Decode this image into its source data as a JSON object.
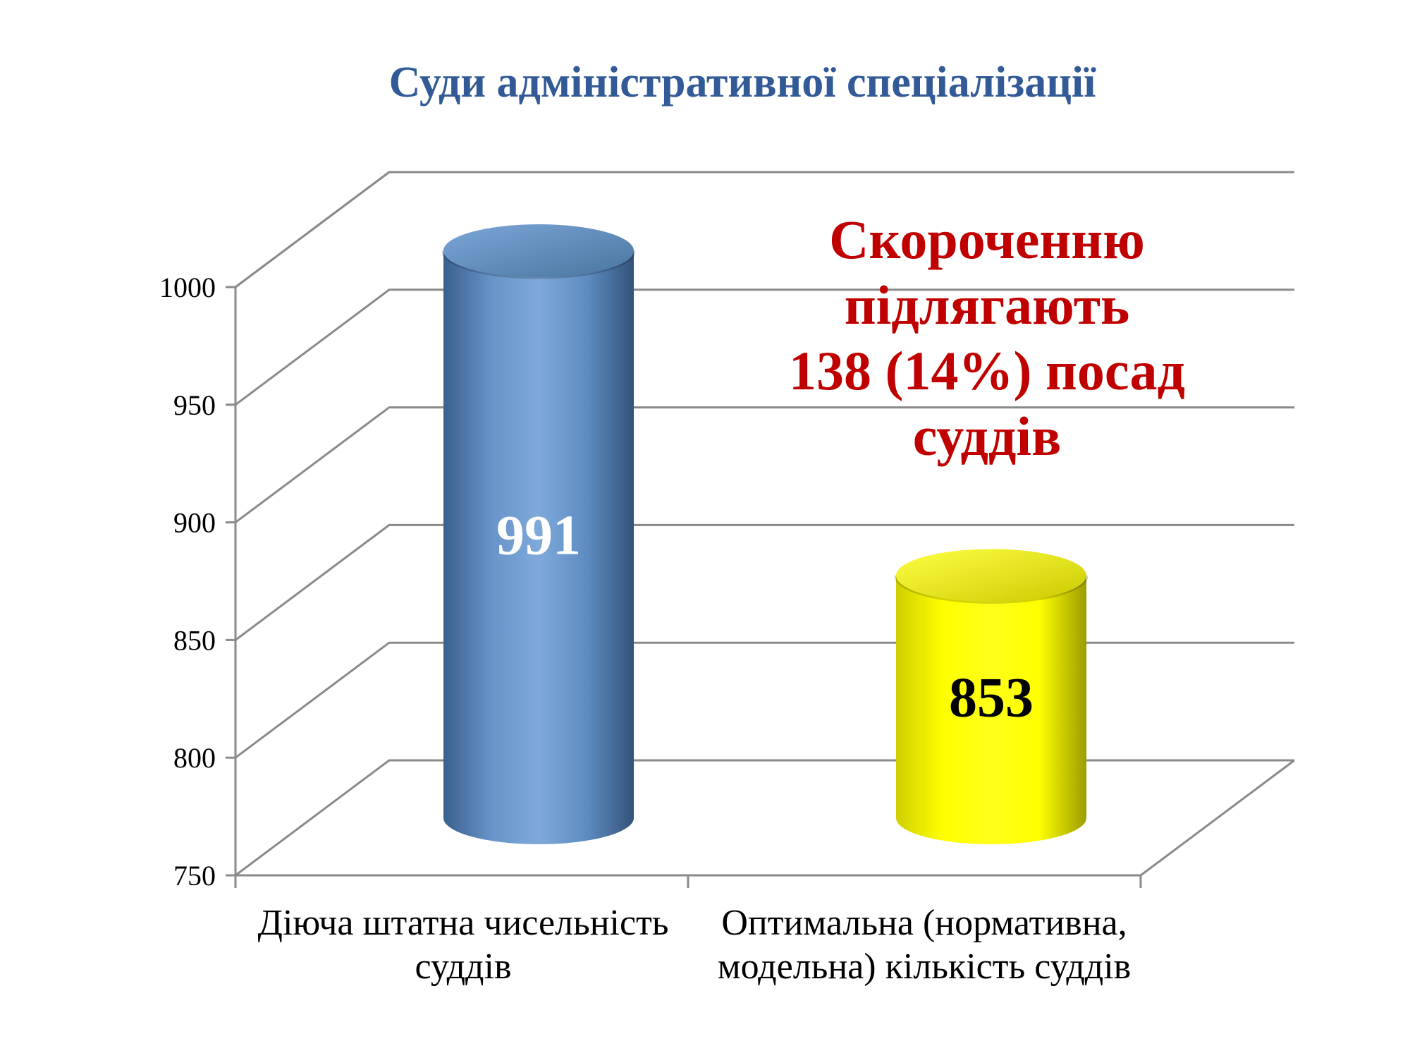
{
  "title": {
    "text": "Суди адміністративної спеціалізації",
    "color": "#315A96"
  },
  "annotation": {
    "lines": [
      "Скороченню",
      "підлягають",
      "138 (14%) посад",
      "суддів"
    ],
    "color": "#C00000"
  },
  "chart_data": {
    "type": "bar",
    "style": "3d-cylinder",
    "title": "Суди адміністративної спеціалізації",
    "categories": [
      "Діюча штатна чисельність суддів",
      "Оптимальна (нормативна, модельна) кількість суддів"
    ],
    "category_label_lines": [
      [
        "Діюча штатна чисельність",
        "суддів"
      ],
      [
        "Оптимальна (нормативна,",
        "модельна) кількість суддів"
      ]
    ],
    "values": [
      991,
      853
    ],
    "value_labels": [
      "991",
      "853"
    ],
    "ylim": [
      750,
      1000
    ],
    "ytick_step": 50,
    "yticks": [
      1000,
      950,
      900,
      850,
      800,
      750
    ],
    "grid": true,
    "legend_position": "none",
    "points": [
      {
        "category": "Діюча штатна чисельність суддів",
        "value": 991,
        "color": "#4F81BD",
        "label_color": "#FFFFFF",
        "body_gradient": [
          "#3A608E",
          "#6693C9",
          "#7FA9DA",
          "#5E8CC2",
          "#345379"
        ],
        "top_gradient": [
          "#7CA6D8",
          "#4A759F"
        ]
      },
      {
        "category": "Оптимальна (нормативна, модельна) кількість суддів",
        "value": 853,
        "color": "#FFFF00",
        "label_color": "#000000",
        "body_gradient": [
          "#CFCF00",
          "#FFFF00",
          "#FFFF1A",
          "#FFFF00",
          "#9C9C00"
        ],
        "top_gradient": [
          "#FFFF45",
          "#CACA00"
        ]
      }
    ]
  },
  "yaxis": {
    "tick_labels": [
      "1000",
      "950",
      "900",
      "850",
      "800",
      "750"
    ]
  },
  "colors": {
    "gridline": "#8A8A8A",
    "text": "#000000",
    "background": "#FFFFFF"
  }
}
